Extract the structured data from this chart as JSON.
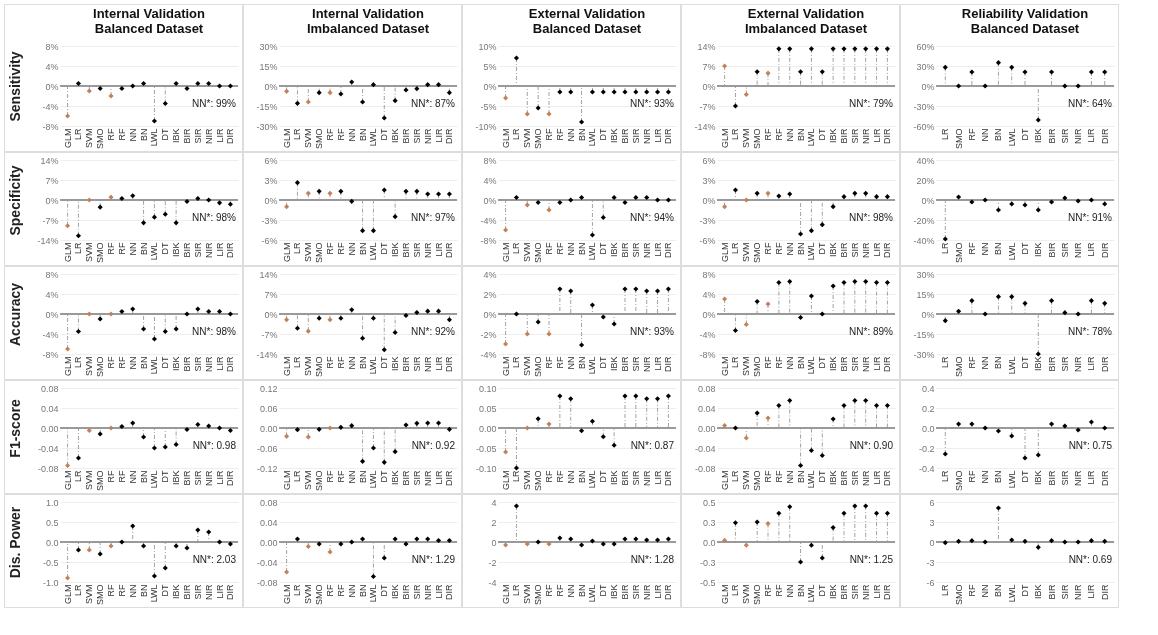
{
  "chart_data": [
    {
      "type": "lollipop",
      "title": "Internal Validation\nBalanced Dataset",
      "ylabel": "Sensitivity",
      "categories": [
        "GLM",
        "LR",
        "SVM",
        "SMO",
        "RF",
        "RF",
        "NN",
        "BN",
        "LWL",
        "DT",
        "IBK",
        "BIR",
        "SIR",
        "NIR",
        "LIR",
        "DIR"
      ],
      "values": [
        -6,
        0.5,
        -1,
        -0.5,
        -2,
        -0.5,
        0,
        0.5,
        -7,
        -3.5,
        0.5,
        -0.5,
        0.5,
        0.5,
        0,
        0
      ],
      "colors": [
        "#c0825a",
        "#000000",
        "#c0825a",
        "#000000",
        "#c0825a",
        "#000000",
        "#000000",
        "#000000",
        "#000000",
        "#000000",
        "#000000",
        "#000000",
        "#000000",
        "#000000",
        "#000000",
        "#000000"
      ],
      "ylim": [
        -8,
        8
      ],
      "yticks": [
        {
          "value": -8,
          "label": "-8%"
        },
        {
          "value": -4,
          "label": "-4%"
        },
        {
          "value": 0,
          "label": "0%"
        },
        {
          "value": 4,
          "label": "4%"
        },
        {
          "value": 8,
          "label": "8%"
        }
      ],
      "annotations": [
        "NN*: 99%"
      ],
      "grid": "y",
      "marker": "diamond"
    },
    {
      "type": "lollipop",
      "title": "Internal Validation\nImbalanced Dataset",
      "categories": [
        "GLM",
        "LR",
        "SVM",
        "SMO",
        "RF",
        "RF",
        "NN",
        "BN",
        "LWL",
        "DT",
        "IBK",
        "BIR",
        "SIR",
        "NIR",
        "LIR",
        "DIR"
      ],
      "values": [
        -4,
        -13,
        -12,
        -5,
        -5,
        -6,
        3,
        -12,
        1,
        -24,
        -11,
        -3,
        -2,
        1,
        1,
        -5
      ],
      "colors": [
        "#c0825a",
        "#000000",
        "#c0825a",
        "#000000",
        "#c0825a",
        "#000000",
        "#000000",
        "#000000",
        "#000000",
        "#000000",
        "#000000",
        "#000000",
        "#000000",
        "#000000",
        "#000000",
        "#000000"
      ],
      "ylim": [
        -30,
        30
      ],
      "yticks": [
        {
          "value": -30,
          "label": "-30%"
        },
        {
          "value": -15,
          "label": "-15%"
        },
        {
          "value": 0,
          "label": "0%"
        },
        {
          "value": 15,
          "label": "15%"
        },
        {
          "value": 30,
          "label": "30%"
        }
      ],
      "annotations": [
        "NN*: 87%"
      ],
      "grid": "y",
      "marker": "diamond"
    },
    {
      "type": "lollipop",
      "title": "External Validation\nBalanced Dataset",
      "categories": [
        "GLM",
        "LR",
        "SVM",
        "SMO",
        "RF",
        "RF",
        "NN",
        "BN",
        "LWL",
        "DT",
        "IBK",
        "BIR",
        "SIR",
        "NIR",
        "LIR",
        "DIR"
      ],
      "values": [
        -3,
        7,
        -7,
        -5.5,
        -7,
        -1.5,
        -1.5,
        -9,
        -1.5,
        -1.5,
        -1.5,
        -1.5,
        -1.5,
        -1.5,
        -1.5,
        -1.5
      ],
      "colors": [
        "#c0825a",
        "#000000",
        "#c0825a",
        "#000000",
        "#c0825a",
        "#000000",
        "#000000",
        "#000000",
        "#000000",
        "#000000",
        "#000000",
        "#000000",
        "#000000",
        "#000000",
        "#000000",
        "#000000"
      ],
      "ylim": [
        -10,
        10
      ],
      "yticks": [
        {
          "value": -10,
          "label": "-10%"
        },
        {
          "value": -5,
          "label": "-5%"
        },
        {
          "value": 0,
          "label": "0%"
        },
        {
          "value": 5,
          "label": "5%"
        },
        {
          "value": 10,
          "label": "10%"
        }
      ],
      "annotations": [
        "NN*: 93%"
      ],
      "grid": "y",
      "marker": "diamond"
    },
    {
      "type": "lollipop",
      "title": "External Validation\nImbalanced Dataset",
      "categories": [
        "GLM",
        "LR",
        "SVM",
        "SMO",
        "RF",
        "RF",
        "NN",
        "BN",
        "LWL",
        "DT",
        "IBK",
        "BIR",
        "SIR",
        "NIR",
        "LIR",
        "DIR"
      ],
      "values": [
        7,
        -7,
        -3,
        5,
        4.5,
        13,
        13,
        5,
        13,
        5,
        13,
        13,
        13,
        13,
        13,
        13
      ],
      "colors": [
        "#c0825a",
        "#000000",
        "#c0825a",
        "#000000",
        "#c0825a",
        "#000000",
        "#000000",
        "#000000",
        "#000000",
        "#000000",
        "#000000",
        "#000000",
        "#000000",
        "#000000",
        "#000000",
        "#000000"
      ],
      "ylim": [
        -14,
        14
      ],
      "yticks": [
        {
          "value": -14,
          "label": "-14%"
        },
        {
          "value": -7,
          "label": "-7%"
        },
        {
          "value": 0,
          "label": "0%"
        },
        {
          "value": 7,
          "label": "7%"
        },
        {
          "value": 14,
          "label": "14%"
        }
      ],
      "annotations": [
        "NN*: 79%"
      ],
      "grid": "y",
      "marker": "diamond"
    },
    {
      "type": "lollipop",
      "title": "Reliability Validation\nBalanced Dataset",
      "categories": [
        "LR",
        "SMO",
        "RF",
        "NN",
        "BN",
        "LWL",
        "DT",
        "IBK",
        "BIR",
        "SIR",
        "NIR",
        "LIR",
        "DIR"
      ],
      "values": [
        28,
        0,
        21,
        0,
        35,
        28,
        21,
        -51,
        21,
        0,
        0,
        21,
        21
      ],
      "colors": [
        "#000000",
        "#000000",
        "#000000",
        "#000000",
        "#000000",
        "#000000",
        "#000000",
        "#000000",
        "#000000",
        "#000000",
        "#000000",
        "#000000",
        "#000000"
      ],
      "ylim": [
        -60,
        60
      ],
      "yticks": [
        {
          "value": -60,
          "label": "-60%"
        },
        {
          "value": -30,
          "label": "-30%"
        },
        {
          "value": 0,
          "label": "0%"
        },
        {
          "value": 30,
          "label": "30%"
        },
        {
          "value": 60,
          "label": "60%"
        }
      ],
      "annotations": [
        "NN*: 64%"
      ],
      "grid": "y",
      "marker": "diamond"
    },
    {
      "type": "lollipop",
      "ylabel": "Specificity",
      "categories": [
        "GLM",
        "LR",
        "SVM",
        "SMO",
        "RF",
        "RF",
        "NN",
        "BN",
        "LWL",
        "DT",
        "IBK",
        "BIR",
        "SIR",
        "NIR",
        "LIR",
        "DIR"
      ],
      "values": [
        -9,
        -12.5,
        0,
        -2.5,
        1,
        0.5,
        1.5,
        -8,
        -6,
        -5,
        -8,
        -0.5,
        0.5,
        0,
        -1,
        -1.5
      ],
      "colors": [
        "#c0825a",
        "#000000",
        "#c0825a",
        "#000000",
        "#c0825a",
        "#000000",
        "#000000",
        "#000000",
        "#000000",
        "#000000",
        "#000000",
        "#000000",
        "#000000",
        "#000000",
        "#000000",
        "#000000"
      ],
      "ylim": [
        -14,
        14
      ],
      "yticks": [
        {
          "value": -14,
          "label": "-14%"
        },
        {
          "value": -7,
          "label": "-7%"
        },
        {
          "value": 0,
          "label": "0%"
        },
        {
          "value": 7,
          "label": "7%"
        },
        {
          "value": 14,
          "label": "14%"
        }
      ],
      "annotations": [
        "NN*: 98%"
      ],
      "grid": "y",
      "marker": "diamond"
    },
    {
      "type": "lollipop",
      "categories": [
        "GLM",
        "LR",
        "SVM",
        "SMO",
        "RF",
        "RF",
        "NN",
        "BN",
        "LWL",
        "DT",
        "IBK",
        "BIR",
        "SIR",
        "NIR",
        "LIR",
        "DIR"
      ],
      "values": [
        -1,
        2.6,
        1,
        1.3,
        1,
        1.3,
        -0.2,
        -4.6,
        -4.6,
        1.5,
        -2.5,
        1.3,
        1.3,
        0.9,
        0.9,
        0.9
      ],
      "colors": [
        "#c0825a",
        "#000000",
        "#c0825a",
        "#000000",
        "#c0825a",
        "#000000",
        "#000000",
        "#000000",
        "#000000",
        "#000000",
        "#000000",
        "#000000",
        "#000000",
        "#000000",
        "#000000",
        "#000000"
      ],
      "ylim": [
        -6,
        6
      ],
      "yticks": [
        {
          "value": -6,
          "label": "-6%"
        },
        {
          "value": -3,
          "label": "-3%"
        },
        {
          "value": 0,
          "label": "0%"
        },
        {
          "value": 3,
          "label": "3%"
        },
        {
          "value": 6,
          "label": "6%"
        }
      ],
      "annotations": [
        "NN*: 97%"
      ],
      "grid": "y",
      "marker": "diamond"
    },
    {
      "type": "lollipop",
      "categories": [
        "GLM",
        "LR",
        "SVM",
        "SMO",
        "RF",
        "RF",
        "NN",
        "BN",
        "LWL",
        "DT",
        "IBK",
        "BIR",
        "SIR",
        "NIR",
        "LIR",
        "DIR"
      ],
      "values": [
        -6,
        0.5,
        -1,
        -0.5,
        -2,
        -0.5,
        0,
        0.5,
        -7,
        -3.5,
        0.5,
        -0.5,
        0.5,
        0.5,
        0,
        0
      ],
      "colors": [
        "#c0825a",
        "#000000",
        "#c0825a",
        "#000000",
        "#c0825a",
        "#000000",
        "#000000",
        "#000000",
        "#000000",
        "#000000",
        "#000000",
        "#000000",
        "#000000",
        "#000000",
        "#000000",
        "#000000"
      ],
      "ylim": [
        -8,
        8
      ],
      "yticks": [
        {
          "value": -8,
          "label": "-8%"
        },
        {
          "value": -4,
          "label": "-4%"
        },
        {
          "value": 0,
          "label": "0%"
        },
        {
          "value": 4,
          "label": "4%"
        },
        {
          "value": 8,
          "label": "8%"
        }
      ],
      "annotations": [
        "NN*: 94%"
      ],
      "grid": "y",
      "marker": "diamond"
    },
    {
      "type": "lollipop",
      "categories": [
        "GLM",
        "LR",
        "SVM",
        "SMO",
        "RF",
        "RF",
        "NN",
        "BN",
        "LWL",
        "DT",
        "IBK",
        "BIR",
        "SIR",
        "NIR",
        "LIR",
        "DIR"
      ],
      "values": [
        -1,
        1.5,
        0,
        1,
        1,
        0.6,
        0.9,
        -5.1,
        -4.6,
        -3.7,
        -1,
        0.5,
        1,
        1,
        0.5,
        0.5
      ],
      "colors": [
        "#c0825a",
        "#000000",
        "#c0825a",
        "#000000",
        "#c0825a",
        "#000000",
        "#000000",
        "#000000",
        "#000000",
        "#000000",
        "#000000",
        "#000000",
        "#000000",
        "#000000",
        "#000000",
        "#000000"
      ],
      "ylim": [
        -6,
        6
      ],
      "yticks": [
        {
          "value": -6,
          "label": "-6%"
        },
        {
          "value": -3,
          "label": "-3%"
        },
        {
          "value": 0,
          "label": "0%"
        },
        {
          "value": 3,
          "label": "3%"
        },
        {
          "value": 6,
          "label": "6%"
        }
      ],
      "annotations": [
        "NN*: 98%"
      ],
      "grid": "y",
      "marker": "diamond"
    },
    {
      "type": "lollipop",
      "categories": [
        "LR",
        "SMO",
        "RF",
        "NN",
        "BN",
        "LWL",
        "DT",
        "IBK",
        "BIR",
        "SIR",
        "NIR",
        "LIR",
        "DIR"
      ],
      "values": [
        -39,
        3,
        -2,
        0,
        -10,
        -4,
        -5,
        -10,
        -2,
        2,
        -1,
        0,
        -4
      ],
      "colors": [
        "#000000",
        "#000000",
        "#000000",
        "#000000",
        "#000000",
        "#000000",
        "#000000",
        "#000000",
        "#000000",
        "#000000",
        "#000000",
        "#000000",
        "#000000"
      ],
      "ylim": [
        -40,
        40
      ],
      "yticks": [
        {
          "value": -40,
          "label": "-40%"
        },
        {
          "value": -20,
          "label": "-20%"
        },
        {
          "value": 0,
          "label": "0%"
        },
        {
          "value": 20,
          "label": "20%"
        },
        {
          "value": 40,
          "label": "40%"
        }
      ],
      "annotations": [
        "NN*: 91%"
      ],
      "grid": "y",
      "marker": "diamond"
    },
    {
      "type": "lollipop",
      "ylabel": "Accuracy",
      "categories": [
        "GLM",
        "LR",
        "SVM",
        "SMO",
        "RF",
        "RF",
        "NN",
        "BN",
        "LWL",
        "DT",
        "IBK",
        "BIR",
        "SIR",
        "NIR",
        "LIR",
        "DIR"
      ],
      "values": [
        -7,
        -3.5,
        0,
        -1,
        0,
        0.5,
        1,
        -3,
        -5,
        -3.5,
        -3,
        0,
        1,
        0.5,
        0.5,
        0
      ],
      "colors": [
        "#c0825a",
        "#000000",
        "#c0825a",
        "#000000",
        "#c0825a",
        "#000000",
        "#000000",
        "#000000",
        "#000000",
        "#000000",
        "#000000",
        "#000000",
        "#000000",
        "#000000",
        "#000000",
        "#000000"
      ],
      "ylim": [
        -8,
        8
      ],
      "yticks": [
        {
          "value": -8,
          "label": "-8%"
        },
        {
          "value": -4,
          "label": "-4%"
        },
        {
          "value": 0,
          "label": "0%"
        },
        {
          "value": 4,
          "label": "4%"
        },
        {
          "value": 8,
          "label": "8%"
        }
      ],
      "annotations": [
        "NN*: 98%"
      ],
      "grid": "y",
      "marker": "diamond"
    },
    {
      "type": "lollipop",
      "categories": [
        "GLM",
        "LR",
        "SVM",
        "SMO",
        "RF",
        "RF",
        "NN",
        "BN",
        "LWL",
        "DT",
        "IBK",
        "BIR",
        "SIR",
        "NIR",
        "LIR",
        "DIR"
      ],
      "values": [
        -2,
        -5,
        -6,
        -1.5,
        -2,
        -1.5,
        1.5,
        -8.5,
        -1.5,
        -12.5,
        -6.5,
        -0.5,
        0.5,
        1,
        1,
        -2
      ],
      "colors": [
        "#c0825a",
        "#000000",
        "#c0825a",
        "#000000",
        "#c0825a",
        "#000000",
        "#000000",
        "#000000",
        "#000000",
        "#000000",
        "#000000",
        "#000000",
        "#000000",
        "#000000",
        "#000000",
        "#000000"
      ],
      "ylim": [
        -14,
        14
      ],
      "yticks": [
        {
          "value": -14,
          "label": "-14%"
        },
        {
          "value": -7,
          "label": "-7%"
        },
        {
          "value": 0,
          "label": "0%"
        },
        {
          "value": 7,
          "label": "7%"
        },
        {
          "value": 14,
          "label": "14%"
        }
      ],
      "annotations": [
        "NN*: 92%"
      ],
      "grid": "y",
      "marker": "diamond"
    },
    {
      "type": "lollipop",
      "categories": [
        "GLM",
        "LR",
        "SVM",
        "SMO",
        "RF",
        "RF",
        "NN",
        "BN",
        "LWL",
        "DT",
        "IBK",
        "BIR",
        "SIR",
        "NIR",
        "LIR",
        "DIR"
      ],
      "values": [
        -3,
        0,
        -2,
        -0.8,
        -2,
        2.5,
        2.3,
        -3.1,
        0.9,
        -0.3,
        -1,
        2.5,
        2.5,
        2.3,
        2.3,
        2.5
      ],
      "colors": [
        "#c0825a",
        "#000000",
        "#c0825a",
        "#000000",
        "#c0825a",
        "#000000",
        "#000000",
        "#000000",
        "#000000",
        "#000000",
        "#000000",
        "#000000",
        "#000000",
        "#000000",
        "#000000",
        "#000000"
      ],
      "ylim": [
        -4,
        4
      ],
      "yticks": [
        {
          "value": -4,
          "label": "-4%"
        },
        {
          "value": -2,
          "label": "-2%"
        },
        {
          "value": 0,
          "label": "0%"
        },
        {
          "value": 2,
          "label": "2%"
        },
        {
          "value": 4,
          "label": "4%"
        }
      ],
      "annotations": [
        "NN*: 93%"
      ],
      "grid": "y",
      "marker": "diamond"
    },
    {
      "type": "lollipop",
      "categories": [
        "GLM",
        "LR",
        "SVM",
        "SMO",
        "RF",
        "RF",
        "NN",
        "BN",
        "LWL",
        "DT",
        "IBK",
        "BIR",
        "SIR",
        "NIR",
        "LIR",
        "DIR"
      ],
      "values": [
        3,
        -3.3,
        -2.1,
        2.5,
        2,
        6.3,
        6.5,
        -0.7,
        3.6,
        0,
        5.6,
        6.3,
        6.5,
        6.5,
        6.3,
        6.3
      ],
      "colors": [
        "#c0825a",
        "#000000",
        "#c0825a",
        "#000000",
        "#c0825a",
        "#000000",
        "#000000",
        "#000000",
        "#000000",
        "#000000",
        "#000000",
        "#000000",
        "#000000",
        "#000000",
        "#000000",
        "#000000"
      ],
      "ylim": [
        -8,
        8
      ],
      "yticks": [
        {
          "value": -8,
          "label": "-8%"
        },
        {
          "value": -4,
          "label": "-4%"
        },
        {
          "value": 0,
          "label": "0%"
        },
        {
          "value": 4,
          "label": "4%"
        },
        {
          "value": 8,
          "label": "8%"
        }
      ],
      "annotations": [
        "NN*: 89%"
      ],
      "grid": "y",
      "marker": "diamond"
    },
    {
      "type": "lollipop",
      "categories": [
        "LR",
        "SMO",
        "RF",
        "NN",
        "BN",
        "LWL",
        "DT",
        "IBK",
        "BIR",
        "SIR",
        "NIR",
        "LIR",
        "DIR"
      ],
      "values": [
        -5,
        2,
        10,
        0,
        13,
        13,
        8,
        -30,
        10,
        1,
        0,
        10,
        8
      ],
      "colors": [
        "#000000",
        "#000000",
        "#000000",
        "#000000",
        "#000000",
        "#000000",
        "#000000",
        "#000000",
        "#000000",
        "#000000",
        "#000000",
        "#000000",
        "#000000"
      ],
      "ylim": [
        -30,
        30
      ],
      "yticks": [
        {
          "value": -30,
          "label": "-30%"
        },
        {
          "value": -15,
          "label": "-15%"
        },
        {
          "value": 0,
          "label": "0%"
        },
        {
          "value": 15,
          "label": "15%"
        },
        {
          "value": 30,
          "label": "30%"
        }
      ],
      "annotations": [
        "NN*: 78%"
      ],
      "grid": "y",
      "marker": "diamond"
    },
    {
      "type": "lollipop",
      "ylabel": "F1-score",
      "categories": [
        "GLM",
        "LR",
        "SVM",
        "SMO",
        "RF",
        "RF",
        "NN",
        "BN",
        "LWL",
        "DT",
        "IBK",
        "BIR",
        "SIR",
        "NIR",
        "LIR",
        "DIR"
      ],
      "values": [
        -0.075,
        -0.06,
        -0.005,
        -0.012,
        0,
        0.003,
        0.01,
        -0.018,
        -0.04,
        -0.038,
        -0.033,
        -0.003,
        0.007,
        0.004,
        0,
        -0.005
      ],
      "colors": [
        "#c0825a",
        "#000000",
        "#c0825a",
        "#000000",
        "#c0825a",
        "#000000",
        "#000000",
        "#000000",
        "#000000",
        "#000000",
        "#000000",
        "#000000",
        "#000000",
        "#000000",
        "#000000",
        "#000000"
      ],
      "ylim": [
        -0.08,
        0.08
      ],
      "yticks": [
        {
          "value": -0.08,
          "label": "-0.08"
        },
        {
          "value": -0.04,
          "label": "-0.04"
        },
        {
          "value": 0,
          "label": "0.00"
        },
        {
          "value": 0.04,
          "label": "0.04"
        },
        {
          "value": 0.08,
          "label": "0.08"
        }
      ],
      "annotations": [
        "NN*: 0.98"
      ],
      "grid": "y",
      "marker": "diamond"
    },
    {
      "type": "lollipop",
      "categories": [
        "GLM",
        "LR",
        "SVM",
        "SMO",
        "RF",
        "RF",
        "NN",
        "BN",
        "LWL",
        "DT",
        "IBK",
        "BIR",
        "SIR",
        "NIR",
        "LIR",
        "DIR"
      ],
      "values": [
        -0.025,
        -0.005,
        -0.027,
        -0.004,
        0,
        0.002,
        0.007,
        -0.1,
        -0.06,
        -0.103,
        -0.071,
        0.009,
        0.014,
        0.015,
        0.015,
        -0.004
      ],
      "colors": [
        "#c0825a",
        "#000000",
        "#c0825a",
        "#000000",
        "#c0825a",
        "#000000",
        "#000000",
        "#000000",
        "#000000",
        "#000000",
        "#000000",
        "#000000",
        "#000000",
        "#000000",
        "#000000",
        "#000000"
      ],
      "ylim": [
        -0.12,
        0.12
      ],
      "yticks": [
        {
          "value": -0.12,
          "label": "-0.12"
        },
        {
          "value": -0.06,
          "label": "-0.06"
        },
        {
          "value": 0,
          "label": "0.00"
        },
        {
          "value": 0.06,
          "label": "0.06"
        },
        {
          "value": 0.12,
          "label": "0.12"
        }
      ],
      "annotations": [
        "NN*: 0.92"
      ],
      "grid": "y",
      "marker": "diamond"
    },
    {
      "type": "lollipop",
      "categories": [
        "GLM",
        "LR",
        "SVM",
        "SMO",
        "RF",
        "RF",
        "NN",
        "BN",
        "LWL",
        "DT",
        "IBK",
        "BIR",
        "SIR",
        "NIR",
        "LIR",
        "DIR"
      ],
      "values": [
        -0.06,
        -0.1,
        0,
        0.023,
        0.01,
        0.08,
        0.073,
        -0.007,
        0.017,
        -0.022,
        -0.043,
        0.08,
        0.08,
        0.073,
        0.073,
        0.08
      ],
      "colors": [
        "#c0825a",
        "#000000",
        "#c0825a",
        "#000000",
        "#c0825a",
        "#000000",
        "#000000",
        "#000000",
        "#000000",
        "#000000",
        "#000000",
        "#000000",
        "#000000",
        "#000000",
        "#000000",
        "#000000"
      ],
      "ylim": [
        -0.1,
        0.1
      ],
      "yticks": [
        {
          "value": -0.1,
          "label": "-0.10"
        },
        {
          "value": -0.05,
          "label": "-0.05"
        },
        {
          "value": 0,
          "label": "0.00"
        },
        {
          "value": 0.05,
          "label": "0.05"
        },
        {
          "value": 0.1,
          "label": "0.10"
        }
      ],
      "annotations": [
        "NN*: 0.87"
      ],
      "grid": "y",
      "marker": "diamond"
    },
    {
      "type": "lollipop",
      "categories": [
        "GLM",
        "LR",
        "SVM",
        "SMO",
        "RF",
        "RF",
        "NN",
        "BN",
        "LWL",
        "DT",
        "IBK",
        "BIR",
        "SIR",
        "NIR",
        "LIR",
        "DIR"
      ],
      "values": [
        0.005,
        0,
        -0.02,
        0.03,
        0.02,
        0.045,
        0.055,
        -0.075,
        -0.045,
        -0.055,
        0.018,
        0.045,
        0.055,
        0.055,
        0.045,
        0.045
      ],
      "colors": [
        "#c0825a",
        "#000000",
        "#c0825a",
        "#000000",
        "#c0825a",
        "#000000",
        "#000000",
        "#000000",
        "#000000",
        "#000000",
        "#000000",
        "#000000",
        "#000000",
        "#000000",
        "#000000",
        "#000000"
      ],
      "ylim": [
        -0.08,
        0.08
      ],
      "yticks": [
        {
          "value": -0.08,
          "label": "-0.08"
        },
        {
          "value": -0.04,
          "label": "-0.04"
        },
        {
          "value": 0,
          "label": "0.00"
        },
        {
          "value": 0.04,
          "label": "0.04"
        },
        {
          "value": 0.08,
          "label": "0.08"
        }
      ],
      "annotations": [
        "NN*: 0.90"
      ],
      "grid": "y",
      "marker": "diamond"
    },
    {
      "type": "lollipop",
      "categories": [
        "LR",
        "SMO",
        "RF",
        "NN",
        "BN",
        "LWL",
        "DT",
        "IBK",
        "BIR",
        "SIR",
        "NIR",
        "LIR",
        "DIR"
      ],
      "values": [
        -0.26,
        0.04,
        0.04,
        0,
        -0.03,
        -0.08,
        -0.3,
        -0.27,
        0.04,
        0.02,
        -0.02,
        0.06,
        0
      ],
      "colors": [
        "#000000",
        "#000000",
        "#000000",
        "#000000",
        "#000000",
        "#000000",
        "#000000",
        "#000000",
        "#000000",
        "#000000",
        "#000000",
        "#000000",
        "#000000"
      ],
      "ylim": [
        -0.4,
        0.4
      ],
      "yticks": [
        {
          "value": -0.4,
          "label": "-0.4"
        },
        {
          "value": -0.2,
          "label": "-0.2"
        },
        {
          "value": 0,
          "label": "0.0"
        },
        {
          "value": 0.2,
          "label": "0.2"
        },
        {
          "value": 0.4,
          "label": "0.4"
        }
      ],
      "annotations": [
        "NN*: 0.75"
      ],
      "grid": "y",
      "marker": "diamond"
    },
    {
      "type": "lollipop",
      "ylabel": "Dis. Power",
      "categories": [
        "GLM",
        "LR",
        "SVM",
        "SMO",
        "RF",
        "RF",
        "NN",
        "BN",
        "LWL",
        "DT",
        "IBK",
        "BIR",
        "SIR",
        "NIR",
        "LIR",
        "DIR"
      ],
      "values": [
        -0.9,
        -0.2,
        -0.2,
        -0.3,
        -0.1,
        0,
        0.4,
        -0.1,
        -0.85,
        -0.65,
        -0.1,
        -0.15,
        0.3,
        0.25,
        0,
        -0.05
      ],
      "colors": [
        "#c0825a",
        "#000000",
        "#c0825a",
        "#000000",
        "#c0825a",
        "#000000",
        "#000000",
        "#000000",
        "#000000",
        "#000000",
        "#000000",
        "#000000",
        "#000000",
        "#000000",
        "#000000",
        "#000000"
      ],
      "ylim": [
        -1,
        1
      ],
      "yticks": [
        {
          "value": -1,
          "label": "-1.0"
        },
        {
          "value": -0.5,
          "label": "-0.5"
        },
        {
          "value": 0,
          "label": "0.0"
        },
        {
          "value": 0.5,
          "label": "0.5"
        },
        {
          "value": 1,
          "label": "1.0"
        }
      ],
      "annotations": [
        "NN*: 2.03"
      ],
      "grid": "y",
      "marker": "diamond"
    },
    {
      "type": "lollipop",
      "categories": [
        "GLM",
        "LR",
        "SVM",
        "SMO",
        "RF",
        "RF",
        "NN",
        "BN",
        "LWL",
        "DT",
        "IBK",
        "BIR",
        "SIR",
        "NIR",
        "LIR",
        "DIR"
      ],
      "values": [
        -0.06,
        0.006,
        -0.009,
        -0.004,
        -0.02,
        -0.004,
        0,
        0.006,
        -0.069,
        -0.032,
        0.006,
        -0.004,
        0.006,
        0.006,
        0.003,
        0.003
      ],
      "colors": [
        "#c0825a",
        "#000000",
        "#c0825a",
        "#000000",
        "#c0825a",
        "#000000",
        "#000000",
        "#000000",
        "#000000",
        "#000000",
        "#000000",
        "#000000",
        "#000000",
        "#000000",
        "#000000",
        "#000000"
      ],
      "ylim": [
        -0.08,
        0.08
      ],
      "yticks": [
        {
          "value": -0.08,
          "label": "-0.08"
        },
        {
          "value": -0.04,
          "label": "-0.04"
        },
        {
          "value": 0,
          "label": "0.00"
        },
        {
          "value": 0.04,
          "label": "0.04"
        },
        {
          "value": 0.08,
          "label": "0.08"
        }
      ],
      "annotations": [
        "NN*: 1.29"
      ],
      "grid": "y",
      "marker": "diamond"
    },
    {
      "type": "lollipop",
      "categories": [
        "GLM",
        "LR",
        "SVM",
        "SMO",
        "RF",
        "RF",
        "NN",
        "BN",
        "LWL",
        "DT",
        "IBK",
        "BIR",
        "SIR",
        "NIR",
        "LIR",
        "DIR"
      ],
      "values": [
        -0.3,
        3.6,
        -0.2,
        0,
        -0.2,
        0.4,
        0.3,
        -0.3,
        0.1,
        -0.2,
        -0.2,
        0.3,
        0.3,
        0.2,
        0.2,
        0.3
      ],
      "colors": [
        "#c0825a",
        "#000000",
        "#c0825a",
        "#000000",
        "#c0825a",
        "#000000",
        "#000000",
        "#000000",
        "#000000",
        "#000000",
        "#000000",
        "#000000",
        "#000000",
        "#000000",
        "#000000",
        "#000000"
      ],
      "ylim": [
        -4,
        4
      ],
      "yticks": [
        {
          "value": -4,
          "label": "-4"
        },
        {
          "value": -2,
          "label": "-2"
        },
        {
          "value": 0,
          "label": "0"
        },
        {
          "value": 2,
          "label": "2"
        },
        {
          "value": 4,
          "label": "4"
        }
      ],
      "annotations": [
        "NN*: 1.28"
      ],
      "grid": "y",
      "marker": "diamond"
    },
    {
      "type": "lollipop",
      "categories": [
        "GLM",
        "LR",
        "SVM",
        "SMO",
        "RF",
        "RF",
        "NN",
        "BN",
        "LWL",
        "DT",
        "IBK",
        "BIR",
        "SIR",
        "NIR",
        "LIR",
        "DIR"
      ],
      "values": [
        0.02,
        0.24,
        -0.04,
        0.25,
        0.23,
        0.36,
        0.44,
        -0.25,
        -0.04,
        -0.2,
        0.18,
        0.36,
        0.45,
        0.45,
        0.36,
        0.36
      ],
      "colors": [
        "#c0825a",
        "#000000",
        "#c0825a",
        "#000000",
        "#c0825a",
        "#000000",
        "#000000",
        "#000000",
        "#000000",
        "#000000",
        "#000000",
        "#000000",
        "#000000",
        "#000000",
        "#000000",
        "#000000"
      ],
      "ylim": [
        -0.5,
        0.5
      ],
      "yticks": [
        {
          "value": -0.5,
          "label": "-0.5"
        },
        {
          "value": -0.25,
          "label": "-0.3"
        },
        {
          "value": 0,
          "label": "0.0"
        },
        {
          "value": 0.25,
          "label": "0.3"
        },
        {
          "value": 0.5,
          "label": "0.5"
        }
      ],
      "annotations": [
        "NN*: 1.25"
      ],
      "grid": "y",
      "marker": "diamond"
    },
    {
      "type": "lollipop",
      "categories": [
        "LR",
        "SMO",
        "RF",
        "NN",
        "BN",
        "LWL",
        "DT",
        "IBK",
        "BIR",
        "SIR",
        "NIR",
        "LIR",
        "DIR"
      ],
      "values": [
        -0.1,
        0.1,
        0.2,
        0,
        5.1,
        0.3,
        0.1,
        -0.8,
        0.2,
        0,
        0,
        0.2,
        0.1
      ],
      "colors": [
        "#000000",
        "#000000",
        "#000000",
        "#000000",
        "#000000",
        "#000000",
        "#000000",
        "#000000",
        "#000000",
        "#000000",
        "#000000",
        "#000000",
        "#000000"
      ],
      "ylim": [
        -6,
        6
      ],
      "yticks": [
        {
          "value": -6,
          "label": "-6"
        },
        {
          "value": -3,
          "label": "-3"
        },
        {
          "value": 0,
          "label": "0"
        },
        {
          "value": 3,
          "label": "3"
        },
        {
          "value": 6,
          "label": "6"
        }
      ],
      "annotations": [
        "NN*: 0.69"
      ],
      "grid": "y",
      "marker": "diamond"
    }
  ]
}
